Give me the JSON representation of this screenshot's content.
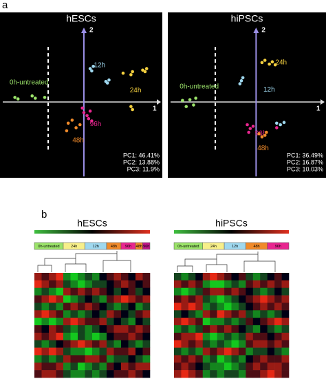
{
  "panel_labels": [
    "a",
    "b"
  ],
  "chart_data": [
    {
      "type": "scatter",
      "title": "hESCs",
      "xlabel": "1",
      "ylabel": "2",
      "xlim": [
        -1.07,
        1
      ],
      "ylim": [
        -1,
        1
      ],
      "annotations": [
        "PC1: 46.41%",
        "PC2: 13.88%",
        "PC3: 11.9%"
      ],
      "series": [
        {
          "name": "0h-untreated",
          "color": "#9be36a",
          "x": [
            -0.88,
            -0.84,
            -0.66,
            -0.62,
            -0.5
          ],
          "y": [
            0.06,
            0.04,
            0.08,
            0.05,
            0.06
          ]
        },
        {
          "name": "12h",
          "color": "#9fd8ef",
          "x": [
            0.08,
            0.12,
            0.1,
            0.28,
            0.32,
            0.3
          ],
          "y": [
            0.44,
            0.47,
            0.41,
            0.27,
            0.29,
            0.25
          ]
        },
        {
          "name": "24h",
          "color": "#f4d03f",
          "x": [
            0.5,
            0.6,
            0.62,
            0.75,
            0.8,
            0.78,
            0.6,
            0.62
          ],
          "y": [
            0.38,
            0.36,
            0.4,
            0.42,
            0.44,
            0.4,
            -0.06,
            -0.1
          ]
        },
        {
          "name": "96h",
          "color": "#e8268f",
          "x": [
            -0.02,
            0.0,
            0.04,
            0.06,
            0.08,
            0.1
          ],
          "y": [
            -0.08,
            -0.14,
            -0.18,
            -0.22,
            -0.12,
            -0.25
          ]
        },
        {
          "name": "48h",
          "color": "#f08a2a",
          "x": [
            -0.2,
            -0.15,
            -0.1,
            -0.22,
            -0.05
          ],
          "y": [
            -0.28,
            -0.24,
            -0.34,
            -0.38,
            -0.3
          ]
        }
      ]
    },
    {
      "type": "scatter",
      "title": "hiPSCs",
      "xlabel": "1",
      "ylabel": "2",
      "xlim": [
        -1.2,
        0.95
      ],
      "ylim": [
        -1,
        1
      ],
      "annotations": [
        "PC1: 36.49%",
        "PC2: 16.87%",
        "PC3: 10.03%"
      ],
      "series": [
        {
          "name": "0h-untreated",
          "color": "#9be36a",
          "x": [
            -1.0,
            -0.95,
            -0.9,
            -0.85,
            -0.82
          ],
          "y": [
            0.02,
            -0.06,
            0.03,
            -0.04,
            0.05
          ]
        },
        {
          "name": "12h",
          "color": "#9fd8ef",
          "x": [
            -0.22,
            -0.2,
            -0.18,
            0.28,
            0.33,
            0.38
          ],
          "y": [
            0.24,
            0.28,
            0.32,
            -0.28,
            -0.3,
            -0.27
          ]
        },
        {
          "name": "24h",
          "color": "#f4d03f",
          "x": [
            0.08,
            0.12,
            0.18,
            0.22,
            0.26
          ],
          "y": [
            0.52,
            0.55,
            0.5,
            0.53,
            0.49
          ]
        },
        {
          "name": "96h",
          "color": "#e8268f",
          "x": [
            -0.12,
            -0.08,
            -0.1,
            -0.04,
            0.28
          ],
          "y": [
            -0.3,
            -0.35,
            -0.4,
            -0.32,
            -0.34
          ]
        },
        {
          "name": "48h",
          "color": "#f08a2a",
          "x": [
            0.04,
            0.08,
            0.12,
            0.14
          ],
          "y": [
            -0.42,
            -0.46,
            -0.44,
            -0.4
          ]
        }
      ]
    },
    {
      "type": "heatmap",
      "title": "hESCs",
      "groups": [
        {
          "name": "0h-untreated",
          "color": "#9be36a",
          "n": 4
        },
        {
          "name": "24h",
          "color": "#f7ef8a",
          "n": 3
        },
        {
          "name": "12h",
          "color": "#9fd8ef",
          "n": 3
        },
        {
          "name": "48h",
          "color": "#f08a2a",
          "n": 2
        },
        {
          "name": "96h",
          "color": "#e8268f",
          "n": 2
        },
        {
          "name": "48h",
          "color": "#f08a2a",
          "n": 1
        },
        {
          "name": "96h",
          "color": "#c2188a",
          "n": 1
        }
      ],
      "values": [
        [
          2,
          1,
          2,
          3,
          -2,
          -3,
          -2,
          -1,
          -2,
          0,
          1,
          2,
          1,
          0,
          2,
          1
        ],
        [
          3,
          2,
          1,
          2,
          -1,
          -2,
          -3,
          -2,
          -1,
          -1,
          0,
          1,
          2,
          1,
          0,
          1
        ],
        [
          -2,
          -1,
          -2,
          -3,
          2,
          1,
          2,
          1,
          2,
          1,
          0,
          -1,
          0,
          1,
          -1,
          0
        ],
        [
          1,
          2,
          3,
          2,
          -3,
          -2,
          -1,
          0,
          -1,
          -2,
          1,
          2,
          3,
          2,
          1,
          2
        ],
        [
          -1,
          -2,
          -1,
          -2,
          1,
          2,
          1,
          2,
          1,
          0,
          -1,
          -2,
          -1,
          0,
          -2,
          -1
        ],
        [
          2,
          3,
          2,
          1,
          -2,
          -1,
          -2,
          -1,
          0,
          -1,
          2,
          1,
          0,
          -1,
          1,
          2
        ],
        [
          -3,
          -2,
          -3,
          -2,
          2,
          3,
          2,
          1,
          1,
          2,
          -1,
          0,
          -1,
          -2,
          0,
          -1
        ],
        [
          1,
          0,
          2,
          1,
          -1,
          -2,
          -1,
          -2,
          -1,
          0,
          1,
          2,
          2,
          1,
          2,
          1
        ],
        [
          2,
          1,
          2,
          3,
          -2,
          -3,
          -1,
          -2,
          -3,
          -2,
          0,
          1,
          1,
          2,
          1,
          0
        ],
        [
          -1,
          -2,
          -1,
          0,
          1,
          2,
          3,
          2,
          1,
          2,
          -1,
          -2,
          0,
          -1,
          -2,
          -1
        ],
        [
          3,
          2,
          3,
          2,
          -1,
          -2,
          -2,
          -3,
          -2,
          -1,
          2,
          1,
          1,
          2,
          0,
          1
        ],
        [
          -2,
          -1,
          -2,
          -1,
          2,
          1,
          1,
          2,
          2,
          1,
          -2,
          -1,
          -1,
          0,
          -1,
          -2
        ],
        [
          2,
          1,
          1,
          2,
          -2,
          -1,
          -3,
          -2,
          -1,
          -2,
          1,
          0,
          2,
          1,
          2,
          2
        ],
        [
          1,
          2,
          2,
          1,
          -1,
          -2,
          -2,
          -1,
          -2,
          -1,
          0,
          1,
          1,
          2,
          1,
          0
        ]
      ]
    },
    {
      "type": "heatmap",
      "title": "hiPSCs",
      "groups": [
        {
          "name": "0h-untreated",
          "color": "#9be36a",
          "n": 4
        },
        {
          "name": "24h",
          "color": "#f7ef8a",
          "n": 3
        },
        {
          "name": "12h",
          "color": "#9fd8ef",
          "n": 3
        },
        {
          "name": "48h",
          "color": "#f08a2a",
          "n": 3
        },
        {
          "name": "96h",
          "color": "#e8268f",
          "n": 3
        }
      ],
      "values": [
        [
          -1,
          -2,
          -1,
          0,
          2,
          3,
          2,
          1,
          0,
          1,
          -1,
          -2,
          -1,
          0,
          1,
          0
        ],
        [
          2,
          1,
          2,
          1,
          -2,
          -3,
          -3,
          -2,
          -1,
          -2,
          1,
          2,
          1,
          2,
          1,
          2
        ],
        [
          -2,
          -3,
          -2,
          -1,
          1,
          2,
          2,
          1,
          2,
          1,
          0,
          -1,
          -2,
          -1,
          0,
          -1
        ],
        [
          1,
          2,
          1,
          2,
          -1,
          -2,
          -3,
          -2,
          -1,
          0,
          1,
          2,
          3,
          2,
          1,
          2
        ],
        [
          3,
          2,
          3,
          2,
          -2,
          -1,
          -2,
          -3,
          -2,
          -1,
          0,
          1,
          2,
          1,
          2,
          1
        ],
        [
          -1,
          0,
          -1,
          -2,
          2,
          1,
          3,
          2,
          1,
          2,
          -1,
          -2,
          -1,
          -2,
          -1,
          0
        ],
        [
          2,
          3,
          2,
          1,
          -3,
          -2,
          -2,
          -1,
          -2,
          -1,
          1,
          0,
          1,
          2,
          3,
          2
        ],
        [
          -2,
          -1,
          -2,
          -1,
          1,
          2,
          1,
          2,
          1,
          0,
          -1,
          -2,
          0,
          -1,
          -2,
          -1
        ],
        [
          1,
          2,
          2,
          3,
          -2,
          -3,
          -2,
          -1,
          -2,
          -1,
          2,
          1,
          1,
          0,
          1,
          2
        ],
        [
          3,
          2,
          1,
          2,
          -1,
          -2,
          -1,
          -2,
          -3,
          -2,
          1,
          2,
          2,
          1,
          2,
          1
        ],
        [
          -1,
          -2,
          -1,
          -2,
          2,
          1,
          2,
          3,
          2,
          1,
          -2,
          -1,
          -1,
          0,
          -1,
          -2
        ],
        [
          2,
          1,
          2,
          1,
          -2,
          -1,
          -3,
          -2,
          -1,
          -2,
          0,
          1,
          2,
          1,
          1,
          2
        ],
        [
          1,
          2,
          1,
          0,
          -1,
          -2,
          -2,
          -3,
          -2,
          -1,
          1,
          2,
          1,
          2,
          2,
          1
        ],
        [
          2,
          3,
          2,
          1,
          -2,
          -1,
          -2,
          -1,
          -1,
          -2,
          1,
          1,
          2,
          3,
          2,
          1
        ]
      ]
    }
  ]
}
